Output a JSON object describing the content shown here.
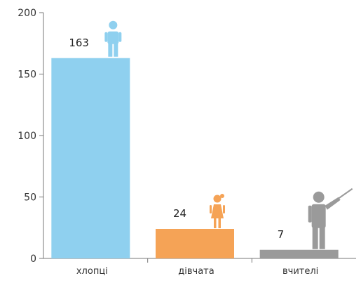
{
  "chart_data": {
    "type": "bar",
    "categories": [
      "хлопці",
      "дівчата",
      "вчителі"
    ],
    "values": [
      163,
      24,
      7
    ],
    "data_labels": [
      "163",
      "24",
      "7"
    ],
    "ylim": [
      0,
      200
    ],
    "yticks": [
      0,
      50,
      100,
      150,
      200
    ],
    "ytick_labels": [
      "0",
      "50",
      "100",
      "150",
      "200"
    ],
    "grid": false,
    "bar_colors": [
      "#8fd0ef",
      "#f5a356",
      "#9a9a9a"
    ],
    "icons": [
      "boy-icon",
      "girl-icon",
      "teacher-icon"
    ],
    "title": "",
    "xlabel": "",
    "ylabel": ""
  }
}
